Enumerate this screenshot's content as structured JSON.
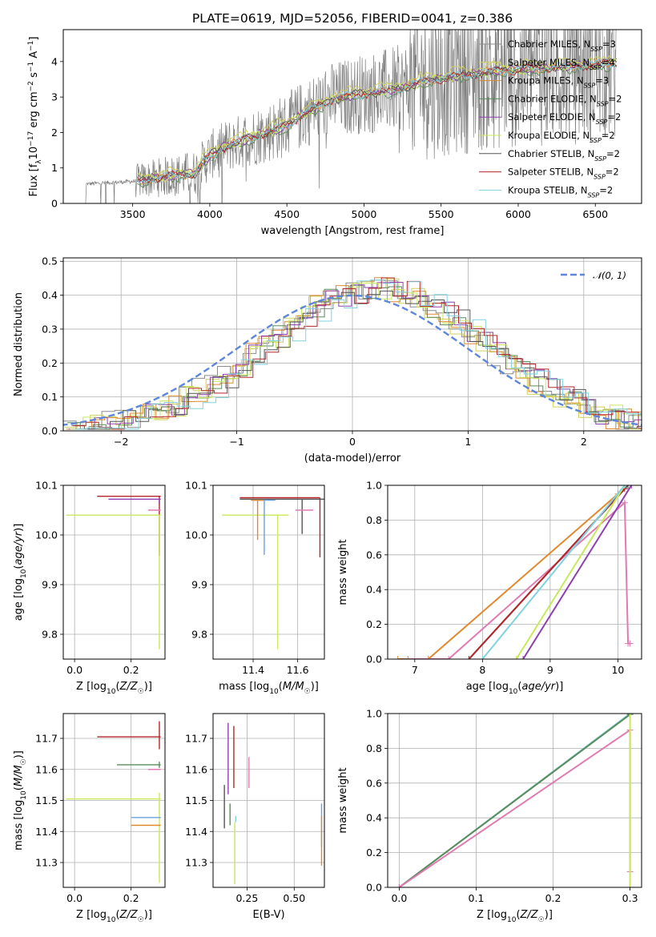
{
  "title": "PLATE=0619, MJD=52056, FIBERID=0041, z=0.386",
  "colors": {
    "Chabrier MILES": "#8c8c8c",
    "Salpeter MILES": "#cfd05a",
    "Kroupa MILES": "#e0892e",
    "Chabrier ELODIE": "#5b8a5b",
    "Salpeter ELODIE": "#8e3fb0",
    "Kroupa ELODIE": "#c9e85a",
    "Chabrier STELIB": "#555555",
    "Salpeter STELIB": "#b5262b",
    "Kroupa STELIB": "#7fd3e0",
    "pink": "#e07ab0",
    "blue": "#6aa0e0",
    "gauss": "#5b86d9"
  },
  "chart_data": [
    {
      "id": "spectrum",
      "type": "line",
      "xlabel": "wavelength [Angstrom, rest frame]",
      "ylabel": "Flux [f_λ 10^-17 erg cm^-2 s^-1 A^-1]",
      "xlim": [
        3050,
        6800
      ],
      "ylim": [
        0,
        4.9
      ],
      "xticks": [
        3500,
        4000,
        4500,
        5000,
        5500,
        6000,
        6500
      ],
      "yticks": [
        0,
        1,
        2,
        3,
        4
      ],
      "grid": false,
      "legend_position": "upper-right",
      "legend": [
        {
          "label": "Chabrier MILES, N_SSP=3",
          "color": "Chabrier MILES"
        },
        {
          "label": "Salpeter MILES, N_SSP=4",
          "color": "Salpeter MILES"
        },
        {
          "label": "Kroupa MILES, N_SSP=3",
          "color": "Kroupa MILES"
        },
        {
          "label": "Chabrier ELODIE, N_SSP=2",
          "color": "Chabrier ELODIE"
        },
        {
          "label": "Salpeter ELODIE, N_SSP=2",
          "color": "Salpeter ELODIE"
        },
        {
          "label": "Kroupa ELODIE, N_SSP=2",
          "color": "Kroupa ELODIE"
        },
        {
          "label": "Chabrier STELIB, N_SSP=2",
          "color": "Chabrier STELIB"
        },
        {
          "label": "Salpeter STELIB, N_SSP=2",
          "color": "Salpeter STELIB"
        },
        {
          "label": "Kroupa STELIB, N_SSP=2",
          "color": "Kroupa STELIB"
        }
      ],
      "model_continuum": [
        [
          3200,
          0.55
        ],
        [
          3500,
          0.62
        ],
        [
          3700,
          0.75
        ],
        [
          3900,
          0.85
        ],
        [
          4000,
          1.35
        ],
        [
          4100,
          1.6
        ],
        [
          4300,
          1.9
        ],
        [
          4500,
          2.2
        ],
        [
          4600,
          2.5
        ],
        [
          4800,
          2.95
        ],
        [
          5000,
          3.1
        ],
        [
          5200,
          3.2
        ],
        [
          5400,
          3.45
        ],
        [
          5600,
          3.6
        ],
        [
          5900,
          3.75
        ],
        [
          6100,
          3.8
        ],
        [
          6300,
          3.85
        ],
        [
          6600,
          3.95
        ]
      ]
    },
    {
      "id": "residuals",
      "type": "histogram",
      "xlabel": "(data-model)/error",
      "ylabel": "Normed distribution",
      "xlim": [
        -2.5,
        2.5
      ],
      "ylim": [
        0,
        0.51
      ],
      "xticks": [
        -2,
        -1,
        0,
        1,
        2
      ],
      "yticks": [
        0.0,
        0.1,
        0.2,
        0.3,
        0.4,
        0.5
      ],
      "grid": true,
      "legend_position": "upper-right",
      "gaussian_label": "𝒩(0, 1)",
      "bin_edges_range": [
        -2.5,
        2.5
      ],
      "n_bins": 45
    },
    {
      "id": "age_vs_Z",
      "type": "errorbar",
      "xlabel": "Z [log10(Z/Z☉)]",
      "ylabel": "age [log10(age/yr)]",
      "xlim": [
        -0.04,
        0.32
      ],
      "ylim": [
        9.75,
        10.1
      ],
      "xticks": [
        0.0,
        0.2
      ],
      "yticks": [
        9.8,
        9.9,
        10.0,
        10.1
      ],
      "grid": true,
      "points": [
        {
          "x": 0.3,
          "y": 10.078,
          "xerr": [
            0.22,
            0.005
          ],
          "yerr": [
            0.12,
            0.0
          ],
          "color": "Salpeter STELIB"
        },
        {
          "x": 0.3,
          "y": 10.072,
          "xerr": [
            0.18,
            0.005
          ],
          "yerr": [
            0.01,
            0.0
          ],
          "color": "Salpeter ELODIE"
        },
        {
          "x": 0.3,
          "y": 10.04,
          "xerr": [
            0.33,
            0.005
          ],
          "yerr": [
            0.27,
            0.0
          ],
          "color": "Kroupa ELODIE"
        },
        {
          "x": 0.3,
          "y": 10.05,
          "xerr": [
            0.04,
            0.005
          ],
          "yerr": [
            0.0,
            0.0
          ],
          "color": "pink"
        }
      ]
    },
    {
      "id": "age_vs_mass",
      "type": "errorbar",
      "xlabel": "mass [log10(M/M☉)]",
      "ylabel": "",
      "xlim": [
        11.22,
        11.72
      ],
      "ylim": [
        9.75,
        10.1
      ],
      "xticks": [
        11.4,
        11.6
      ],
      "yticks": [
        9.8,
        9.9,
        10.0,
        10.1
      ],
      "grid": true,
      "points": [
        {
          "x": 11.7,
          "y": 10.075,
          "xerr": [
            0.36,
            0.0
          ],
          "yerr": [
            0.12,
            0.0
          ],
          "color": "Salpeter STELIB"
        },
        {
          "x": 11.62,
          "y": 10.072,
          "xerr": [
            0.28,
            0.1
          ],
          "yerr": [
            0.07,
            0.0
          ],
          "color": "Chabrier STELIB"
        },
        {
          "x": 11.51,
          "y": 10.04,
          "xerr": [
            0.25,
            0.05
          ],
          "yerr": [
            0.27,
            0.0
          ],
          "color": "Kroupa ELODIE"
        },
        {
          "x": 11.45,
          "y": 10.07,
          "xerr": [
            0.05,
            0.05
          ],
          "yerr": [
            0.11,
            0.0
          ],
          "color": "blue"
        },
        {
          "x": 11.42,
          "y": 10.07,
          "xerr": [
            0.03,
            0.03
          ],
          "yerr": [
            0.08,
            0.0
          ],
          "color": "Kroupa MILES"
        },
        {
          "x": 11.64,
          "y": 10.05,
          "xerr": [
            0.05,
            0.03
          ],
          "yerr": [
            0.0,
            0.0
          ],
          "color": "pink"
        }
      ]
    },
    {
      "id": "mass_weight_vs_age",
      "type": "line",
      "xlabel": "age [log10(age/yr)]",
      "ylabel": "mass weight",
      "xlim": [
        6.6,
        10.35
      ],
      "ylim": [
        0,
        1
      ],
      "xticks": [
        7,
        8,
        9,
        10
      ],
      "yticks": [
        0.0,
        0.2,
        0.4,
        0.6,
        0.8,
        1.0
      ],
      "grid": true,
      "series": [
        {
          "color": "Kroupa MILES",
          "x": [
            6.75,
            7.2,
            10.0,
            10.1
          ],
          "y": [
            0,
            0,
            0.95,
            1.0
          ]
        },
        {
          "color": "pink",
          "x": [
            6.9,
            7.5,
            10.1,
            10.15,
            10.18
          ],
          "y": [
            0,
            0,
            0.9,
            0.09,
            0.09
          ]
        },
        {
          "color": "Chabrier STELIB",
          "x": [
            7.8,
            10.15
          ],
          "y": [
            0,
            1.0
          ]
        },
        {
          "color": "Salpeter STELIB",
          "x": [
            7.8,
            10.1
          ],
          "y": [
            0,
            0.98
          ]
        },
        {
          "color": "Kroupa ELODIE",
          "x": [
            8.5,
            10.1
          ],
          "y": [
            0,
            1.0
          ]
        },
        {
          "color": "Salpeter ELODIE",
          "x": [
            8.6,
            10.2
          ],
          "y": [
            0,
            1.0
          ]
        },
        {
          "color": "Kroupa STELIB",
          "x": [
            8.0,
            10.1
          ],
          "y": [
            0,
            1.0
          ]
        }
      ]
    },
    {
      "id": "mass_vs_Z",
      "type": "errorbar",
      "xlabel": "Z [log10(Z/Z☉)]",
      "ylabel": "mass [log10(M/M☉)]",
      "xlim": [
        -0.04,
        0.32
      ],
      "ylim": [
        11.22,
        11.78
      ],
      "xticks": [
        0.0,
        0.2
      ],
      "yticks": [
        11.3,
        11.4,
        11.5,
        11.6,
        11.7
      ],
      "grid": true,
      "points": [
        {
          "x": 0.3,
          "y": 11.705,
          "xerr": [
            0.22,
            0.005
          ],
          "yerr": [
            0.04,
            0.05
          ],
          "color": "Salpeter STELIB"
        },
        {
          "x": 0.3,
          "y": 11.615,
          "xerr": [
            0.15,
            0.005
          ],
          "yerr": [
            0.01,
            0.01
          ],
          "color": "Chabrier ELODIE"
        },
        {
          "x": 0.3,
          "y": 11.505,
          "xerr": [
            0.33,
            0.005
          ],
          "yerr": [
            0.27,
            0.02
          ],
          "color": "Kroupa ELODIE"
        },
        {
          "x": 0.3,
          "y": 11.445,
          "xerr": [
            0.1,
            0.005
          ],
          "yerr": [
            0.0,
            0.0
          ],
          "color": "blue"
        },
        {
          "x": 0.3,
          "y": 11.42,
          "xerr": [
            0.1,
            0.005
          ],
          "yerr": [
            0.0,
            0.0
          ],
          "color": "Kroupa MILES"
        },
        {
          "x": 0.3,
          "y": 11.6,
          "xerr": [
            0.04,
            0.005
          ],
          "yerr": [
            0.0,
            0.0
          ],
          "color": "pink"
        }
      ]
    },
    {
      "id": "mass_vs_ebv",
      "type": "errorbar",
      "xlabel": "E(B-V)",
      "ylabel": "",
      "xlim": [
        0.07,
        0.66
      ],
      "ylim": [
        11.22,
        11.78
      ],
      "xticks": [
        0.25,
        0.5
      ],
      "yticks": [
        11.3,
        11.4,
        11.5,
        11.6,
        11.7
      ],
      "grid": true,
      "points": [
        {
          "x": 0.13,
          "y": 11.48,
          "yerr": [
            0.07,
            0.07
          ],
          "color": "Chabrier STELIB"
        },
        {
          "x": 0.15,
          "y": 11.6,
          "yerr": [
            0.08,
            0.15
          ],
          "color": "Salpeter ELODIE"
        },
        {
          "x": 0.16,
          "y": 11.45,
          "yerr": [
            0.03,
            0.04
          ],
          "color": "Chabrier ELODIE"
        },
        {
          "x": 0.18,
          "y": 11.63,
          "yerr": [
            0.09,
            0.11
          ],
          "color": "Salpeter STELIB"
        },
        {
          "x": 0.185,
          "y": 11.38,
          "yerr": [
            0.15,
            0.05
          ],
          "color": "Kroupa ELODIE"
        },
        {
          "x": 0.19,
          "y": 11.45,
          "yerr": [
            0.02,
            0.0
          ],
          "color": "Kroupa STELIB"
        },
        {
          "x": 0.26,
          "y": 11.57,
          "yerr": [
            0.03,
            0.07
          ],
          "color": "pink"
        },
        {
          "x": 0.645,
          "y": 11.42,
          "yerr": [
            0.07,
            0.07
          ],
          "color": "blue"
        },
        {
          "x": 0.645,
          "y": 11.38,
          "yerr": [
            0.09,
            0.07
          ],
          "color": "Kroupa MILES"
        }
      ]
    },
    {
      "id": "mass_weight_vs_Z",
      "type": "line",
      "xlabel": "Z [log10(Z/Z☉)]",
      "ylabel": "mass weight",
      "xlim": [
        -0.015,
        0.315
      ],
      "ylim": [
        0,
        1
      ],
      "xticks": [
        0.0,
        0.1,
        0.2,
        0.3
      ],
      "yticks": [
        0.0,
        0.2,
        0.4,
        0.6,
        0.8,
        1.0
      ],
      "grid": true,
      "series": [
        {
          "color": "Kroupa STELIB",
          "x": [
            0.0,
            0.3
          ],
          "y": [
            0,
            1.0
          ]
        },
        {
          "color": "Chabrier ELODIE",
          "x": [
            0.0,
            0.3
          ],
          "y": [
            0,
            0.995
          ]
        },
        {
          "color": "pink",
          "x": [
            0.0,
            0.3,
            0.3
          ],
          "y": [
            0,
            0.905,
            0.09
          ]
        },
        {
          "color": "Kroupa ELODIE",
          "x": [
            0.3,
            0.3
          ],
          "y": [
            1.0,
            0.0
          ]
        }
      ]
    }
  ]
}
